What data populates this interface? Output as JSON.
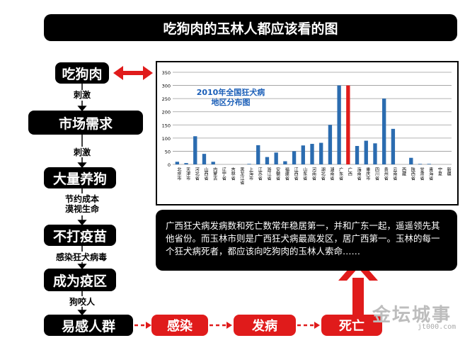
{
  "title": "吃狗肉的玉林人都应该看的图",
  "flow": {
    "nodes": [
      "吃狗肉",
      "市场需求",
      "大量养狗",
      "不打疫苗",
      "成为疫区",
      "易感人群"
    ],
    "edge_labels": [
      "刺激",
      "刺激",
      "节约成本\n漠视生命",
      "感染狂犬病毒",
      "狗咬人"
    ],
    "outcomes": [
      "感染",
      "发病",
      "死亡"
    ]
  },
  "note": "广西狂犬病发病数和死亡数常年稳居第一，并和广东一起，遥遥领先其他省份。而玉林市则是广西狂犬病最高发区，居广西第一。玉林的每一个狂犬病死者，都应该向吃狗肉的玉林人索命……",
  "chart_data": {
    "type": "bar",
    "title": "2010年全国狂犬病\n地区分布图",
    "ylim": [
      0,
      350
    ],
    "yticks": [
      0,
      50,
      100,
      150,
      200,
      250,
      300,
      350
    ],
    "categories": [
      "北京市",
      "天津市",
      "河北省",
      "山西省",
      "内蒙古",
      "辽宁省",
      "吉林省",
      "黑龙江省",
      "上海市",
      "江苏省",
      "浙江省",
      "安徽省",
      "福建省",
      "江西省",
      "山东省",
      "河南省",
      "湖北省",
      "湖南省",
      "广东省",
      "广西",
      "海南省",
      "重庆市",
      "四川省",
      "贵州省",
      "云南省",
      "西藏",
      "陕西省",
      "甘肃省",
      "青海省",
      "宁夏",
      "新疆"
    ],
    "values": [
      10,
      5,
      107,
      40,
      10,
      0,
      0,
      0,
      2,
      73,
      28,
      45,
      12,
      50,
      72,
      78,
      82,
      150,
      300,
      300,
      70,
      90,
      80,
      250,
      135,
      0,
      25,
      2,
      2,
      0,
      0
    ],
    "highlight": "广西",
    "colors": {
      "bar": "#2b6cb0",
      "highlight": "#e01b1b",
      "title": "#1b5fb8"
    }
  },
  "watermark": {
    "main": "金坛城事",
    "sub": "jt000.com"
  }
}
